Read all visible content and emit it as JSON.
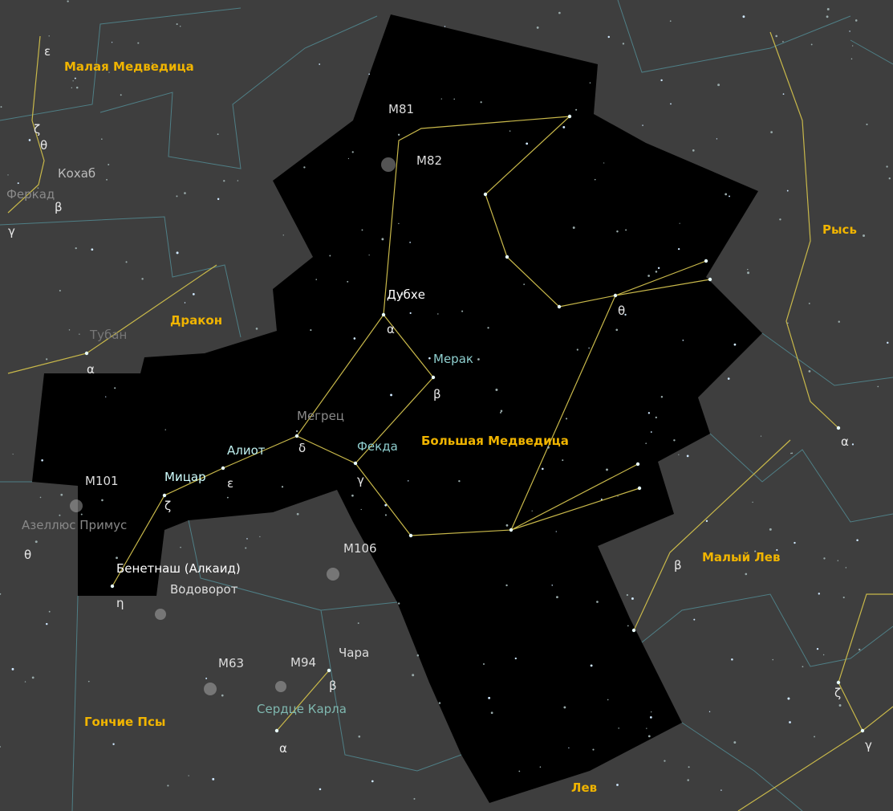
{
  "constellations": [
    "Малая Медведица",
    "Дракон",
    "Большая Медведица",
    "Рысь",
    "Малый Лев",
    "Гончие Псы",
    "Лев"
  ],
  "stars": [
    "Дубхе",
    "Мерак",
    "Мегрец",
    "Фекда",
    "Алиот",
    "Мицар",
    "Бенетнаш (Алкаид)",
    "Кохаб",
    "Феркад",
    "Тубан",
    "Азеллюс Примус",
    "Чара",
    "Сердце Карла"
  ],
  "objects": [
    "M81",
    "M82",
    "M101",
    "M106",
    "Водоворот",
    "M63",
    "M94"
  ],
  "greek": [
    "ε",
    "ζ",
    "θ",
    "β",
    "γ",
    "α",
    "β",
    "δ",
    "γ",
    "ε",
    "ζ",
    "η",
    "θ",
    "θ",
    "β",
    "α",
    "ζ",
    "γ",
    "β",
    "α",
    "α"
  ]
}
